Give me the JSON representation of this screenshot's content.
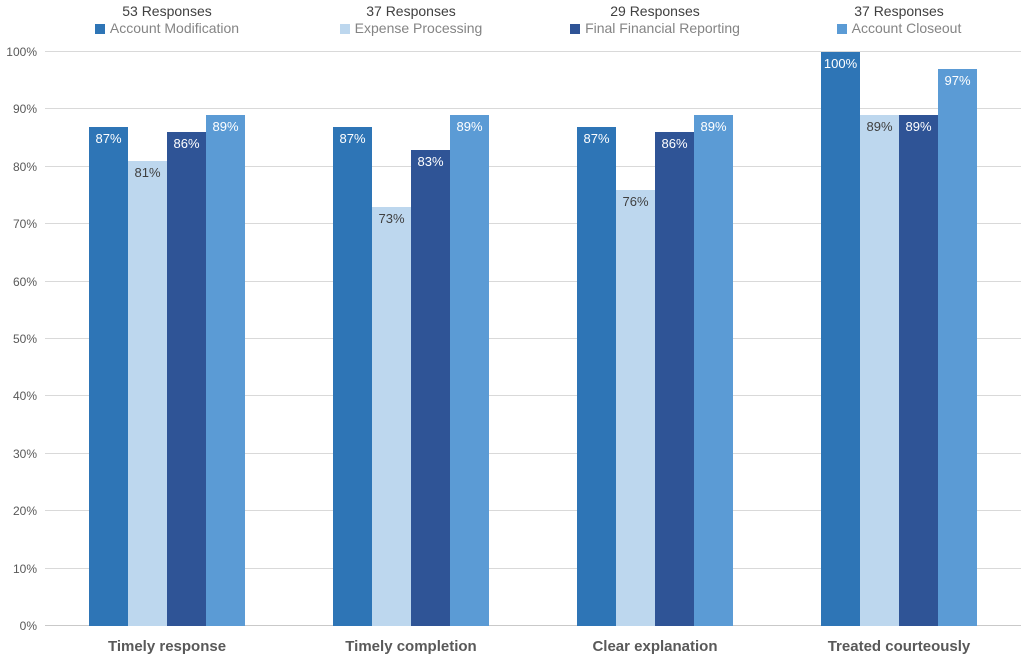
{
  "chart_data": {
    "type": "bar",
    "title": "",
    "categories": [
      "Timely response",
      "Timely completion",
      "Clear explanation",
      "Treated courteously"
    ],
    "series": [
      {
        "name": "Account Modification",
        "responses": "53 Responses",
        "color": "#2E75B6",
        "label_color": "#FFFFFF",
        "values": [
          87,
          87,
          87,
          100
        ]
      },
      {
        "name": "Expense Processing",
        "responses": "37 Responses",
        "color": "#BDD7EE",
        "label_color": "#404040",
        "values": [
          81,
          73,
          76,
          89
        ]
      },
      {
        "name": "Final Financial Reporting",
        "responses": "29 Responses",
        "color": "#2F5496",
        "label_color": "#FFFFFF",
        "values": [
          86,
          83,
          86,
          89
        ]
      },
      {
        "name": "Account Closeout",
        "responses": "37 Responses",
        "color": "#5B9BD5",
        "label_color": "#FFFFFF",
        "values": [
          89,
          89,
          89,
          97
        ]
      }
    ],
    "value_suffix": "%",
    "y_axis": {
      "min": 0,
      "max": 100,
      "step": 10,
      "tick_labels": [
        "0%",
        "10%",
        "20%",
        "30%",
        "40%",
        "50%",
        "60%",
        "70%",
        "80%",
        "90%",
        "100%"
      ]
    },
    "grid": true,
    "legend_position": "top"
  },
  "colors": {
    "background": "#FFFFFF",
    "gridline": "#D9D9D9",
    "axis_line": "#C9C9C9",
    "axis_text": "#595959",
    "category_text": "#595959",
    "legend_count_text": "#404040",
    "legend_name_text": "#848484"
  }
}
